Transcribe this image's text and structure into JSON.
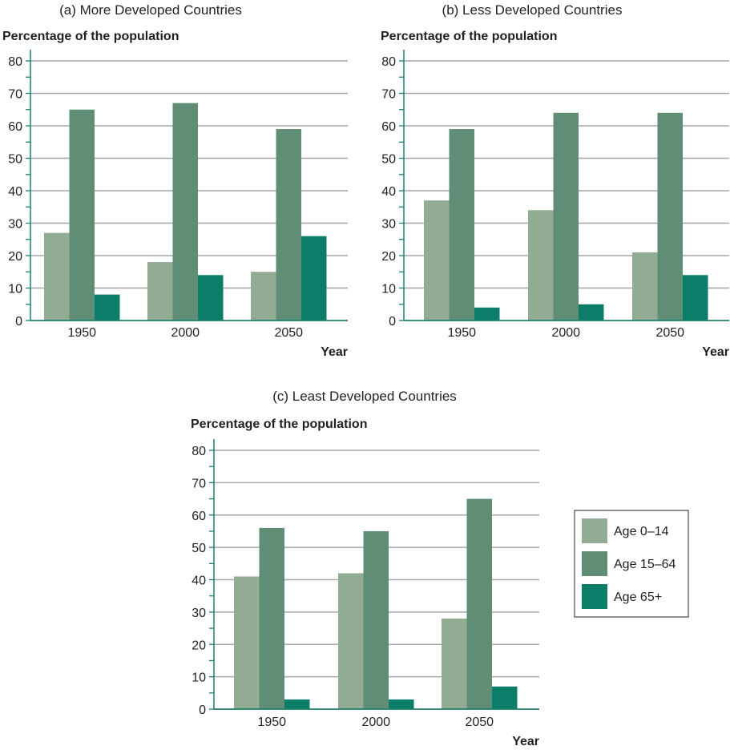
{
  "chart_data": [
    {
      "type": "bar",
      "title": "(a) More Developed Countries",
      "ylabel": "Percentage of the population",
      "xlabel": "Year",
      "categories": [
        "1950",
        "2000",
        "2050"
      ],
      "ylim": [
        0,
        80
      ],
      "yticks": [
        0,
        10,
        20,
        30,
        40,
        50,
        60,
        70,
        80
      ],
      "grid": true,
      "series": [
        {
          "name": "Age 0–14",
          "values": [
            27,
            18,
            15
          ]
        },
        {
          "name": "Age 15–64",
          "values": [
            65,
            67,
            59
          ]
        },
        {
          "name": "Age 65+",
          "values": [
            8,
            14,
            26
          ]
        }
      ]
    },
    {
      "type": "bar",
      "title": "(b) Less Developed Countries",
      "ylabel": "Percentage of the population",
      "xlabel": "Year",
      "categories": [
        "1950",
        "2000",
        "2050"
      ],
      "ylim": [
        0,
        80
      ],
      "yticks": [
        0,
        10,
        20,
        30,
        40,
        50,
        60,
        70,
        80
      ],
      "grid": true,
      "series": [
        {
          "name": "Age 0–14",
          "values": [
            37,
            34,
            21
          ]
        },
        {
          "name": "Age 15–64",
          "values": [
            59,
            64,
            64
          ]
        },
        {
          "name": "Age 65+",
          "values": [
            4,
            5,
            14
          ]
        }
      ]
    },
    {
      "type": "bar",
      "title": "(c) Least Developed Countries",
      "ylabel": "Percentage of the population",
      "xlabel": "Year",
      "categories": [
        "1950",
        "2000",
        "2050"
      ],
      "ylim": [
        0,
        80
      ],
      "yticks": [
        0,
        10,
        20,
        30,
        40,
        50,
        60,
        70,
        80
      ],
      "grid": true,
      "series": [
        {
          "name": "Age 0–14",
          "values": [
            41,
            42,
            28
          ]
        },
        {
          "name": "Age 15–64",
          "values": [
            56,
            55,
            65
          ]
        },
        {
          "name": "Age 65+",
          "values": [
            3,
            3,
            7
          ]
        }
      ]
    }
  ],
  "legend": {
    "placement": "right of panel (c)",
    "items": [
      "Age 0–14",
      "Age 15–64",
      "Age 65+"
    ]
  },
  "colors": {
    "series": [
      "#92ab93",
      "#5f8d75",
      "#0c7d69"
    ],
    "axis": "#1f7d6e",
    "grid": "#a6a6a6",
    "text": "#231f20"
  }
}
